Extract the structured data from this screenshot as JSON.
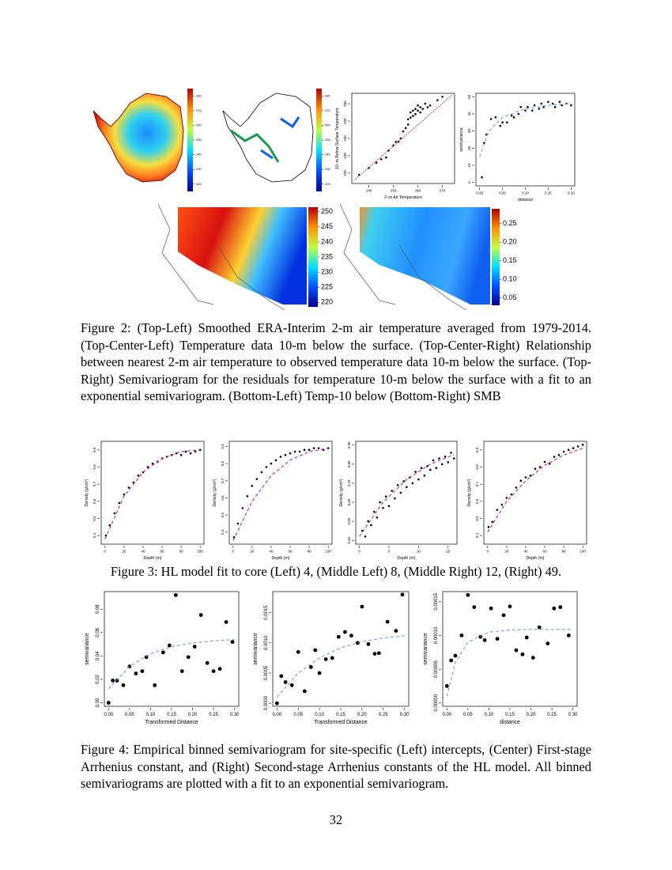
{
  "maps": [
    {
      "colorbar_ticks": [
        220,
        230,
        240,
        250,
        260,
        270,
        280
      ],
      "clim": [
        215,
        285
      ]
    },
    {
      "colorbar_ticks": [
        220,
        230,
        240,
        250,
        260,
        270,
        280
      ],
      "clim": [
        215,
        285
      ]
    },
    {
      "colorbar_ticks": [
        220,
        225,
        230,
        235,
        240,
        245,
        250
      ],
      "clim": [
        218.5,
        251.5
      ]
    },
    {
      "colorbar_ticks": [
        0.05,
        {
          "value": 0.1,
          "label": "0.10"
        },
        0.15,
        {
          "value": 0.2,
          "label": "0.20"
        },
        0.25
      ],
      "clim": [
        0.03,
        0.29
      ]
    }
  ],
  "chart_data": [
    {
      "type": "scatter",
      "xlabel": "2–m Air Temperature",
      "ylabel": "10–m Below Surface Temperature",
      "xlim": [
        233,
        275
      ],
      "ylim": [
        214,
        266
      ],
      "xticks": [
        240,
        250,
        260,
        270
      ],
      "yticks": [
        220,
        230,
        240,
        250,
        260
      ],
      "series": [
        {
          "style": "points",
          "color": "#000000",
          "x": [
            236,
            240,
            243,
            245,
            247,
            248,
            250,
            251,
            252,
            253,
            254,
            255,
            256,
            256,
            257,
            257,
            258,
            258,
            259,
            259,
            260,
            260,
            261,
            261,
            262,
            263,
            264,
            265,
            268,
            270
          ],
          "values": [
            219,
            223,
            226,
            228,
            229,
            233,
            236,
            238,
            238,
            240,
            244,
            246,
            248,
            251,
            252,
            255,
            253,
            256,
            254,
            257,
            256,
            259,
            255,
            258,
            257,
            260,
            258,
            259,
            262,
            264
          ]
        },
        {
          "style": "dotted",
          "color": "#e0302a",
          "x": [
            234,
            274
          ],
          "values": [
            216,
            265
          ]
        }
      ]
    },
    {
      "type": "scatter",
      "xlabel": "distance",
      "ylabel": "semivariance",
      "xlim": [
        -0.008,
        0.208
      ],
      "ylim": [
        -2,
        52
      ],
      "xticks": [
        {
          "value": 0,
          "label": "0.00"
        },
        0.05,
        {
          "value": 0.1,
          "label": "0.10"
        },
        0.15,
        {
          "value": 0.2,
          "label": "0.20"
        }
      ],
      "yticks": [
        0,
        10,
        20,
        30,
        40,
        50
      ],
      "series": [
        {
          "style": "points",
          "color": "#000000",
          "x": [
            0.005,
            0.01,
            0.015,
            0.025,
            0.035,
            0.045,
            0.05,
            0.06,
            0.07,
            0.075,
            0.085,
            0.09,
            0.1,
            0.105,
            0.115,
            0.12,
            0.13,
            0.135,
            0.14,
            0.15,
            0.16,
            0.165,
            0.175,
            0.18,
            0.19,
            0.2
          ],
          "values": [
            3,
            23,
            28,
            37,
            38,
            33,
            35,
            35,
            39,
            38,
            40,
            44,
            42,
            44,
            42,
            45,
            43,
            46,
            44,
            47,
            46,
            44,
            47,
            45,
            46,
            45
          ]
        },
        {
          "style": "dashed",
          "color": "#6f9fe0",
          "x": [
            0,
            0.02,
            0.05,
            0.1,
            0.15,
            0.2
          ],
          "values": [
            15,
            30,
            38,
            43,
            45,
            46
          ]
        }
      ]
    },
    {
      "type": "scatter",
      "xlabel": "Depth (m)",
      "ylabel": "Density (g/cm³)",
      "xlim": [
        -4,
        104
      ],
      "ylim": [
        0.35,
        0.95
      ],
      "xticks": [
        0,
        20,
        40,
        60,
        80,
        100
      ],
      "yticks": [
        0.4,
        0.5,
        0.6,
        0.7,
        0.8,
        0.9
      ],
      "series": [
        {
          "style": "points",
          "color": "#000000",
          "x": [
            1,
            5,
            10,
            15,
            20,
            25,
            30,
            35,
            40,
            45,
            50,
            55,
            60,
            65,
            70,
            75,
            80,
            85,
            90,
            95,
            100
          ],
          "values": [
            0.4,
            0.46,
            0.53,
            0.59,
            0.64,
            0.68,
            0.71,
            0.75,
            0.77,
            0.8,
            0.82,
            0.83,
            0.85,
            0.86,
            0.87,
            0.88,
            0.87,
            0.89,
            0.88,
            0.89,
            0.9
          ]
        },
        {
          "style": "dashed",
          "color": "#c020c0",
          "x": [
            0,
            20,
            40,
            60,
            80,
            100
          ],
          "values": [
            0.38,
            0.63,
            0.77,
            0.85,
            0.89,
            0.9
          ]
        }
      ]
    },
    {
      "type": "scatter",
      "xlabel": "Depth (m)",
      "ylabel": "Density (g/cm³)",
      "xlim": [
        -4,
        104
      ],
      "ylim": [
        0.33,
        0.93
      ],
      "xticks": [
        0,
        20,
        40,
        60,
        80,
        100
      ],
      "yticks": [
        0.4,
        0.5,
        0.6,
        0.7,
        0.8,
        0.9
      ],
      "series": [
        {
          "style": "points",
          "color": "#000000",
          "x": [
            1,
            5,
            10,
            15,
            20,
            25,
            30,
            35,
            40,
            45,
            50,
            55,
            60,
            65,
            70,
            75,
            80,
            85,
            90,
            95,
            100
          ],
          "values": [
            0.37,
            0.45,
            0.54,
            0.61,
            0.67,
            0.71,
            0.75,
            0.78,
            0.8,
            0.82,
            0.84,
            0.85,
            0.86,
            0.87,
            0.87,
            0.88,
            0.88,
            0.89,
            0.89,
            0.88,
            0.89
          ]
        },
        {
          "style": "dashed",
          "color": "#c020c0",
          "x": [
            0,
            20,
            40,
            60,
            80,
            100
          ],
          "values": [
            0.35,
            0.58,
            0.73,
            0.82,
            0.87,
            0.89
          ]
        }
      ]
    },
    {
      "type": "scatter",
      "xlabel": "Depth (m)",
      "ylabel": "Density (g/cm³)",
      "xlim": [
        -0.6,
        16.5
      ],
      "ylim": [
        0.38,
        0.92
      ],
      "xticks": [
        0,
        5,
        10,
        15
      ],
      "yticks": [
        {
          "value": 0.4,
          "label": "0.40"
        },
        {
          "value": 0.5,
          "label": "0.50"
        },
        {
          "value": 0.6,
          "label": "0.60"
        },
        {
          "value": 0.7,
          "label": "0.70"
        },
        {
          "value": 0.8,
          "label": "0.80"
        },
        {
          "value": 0.9,
          "label": "0.90"
        }
      ],
      "series": [
        {
          "style": "points",
          "color": "#000000",
          "x": [
            0.5,
            1,
            1.5,
            2,
            2.5,
            3,
            3.5,
            4,
            4.5,
            5,
            5.5,
            6,
            6.5,
            7,
            7.5,
            8,
            8.5,
            9,
            9.5,
            10,
            10.5,
            11,
            11.5,
            12,
            12.5,
            13,
            13.5,
            14,
            14.5,
            15,
            15.5,
            16
          ],
          "values": [
            0.45,
            0.42,
            0.5,
            0.48,
            0.55,
            0.52,
            0.6,
            0.57,
            0.63,
            0.58,
            0.66,
            0.62,
            0.69,
            0.65,
            0.71,
            0.68,
            0.73,
            0.7,
            0.76,
            0.72,
            0.78,
            0.74,
            0.79,
            0.77,
            0.82,
            0.78,
            0.83,
            0.8,
            0.84,
            0.81,
            0.86,
            0.83
          ]
        },
        {
          "style": "dashed",
          "color": "#c020c0",
          "x": [
            0,
            4,
            8,
            12,
            16
          ],
          "values": [
            0.42,
            0.6,
            0.72,
            0.8,
            0.85
          ]
        }
      ]
    },
    {
      "type": "scatter",
      "xlabel": "Depth (m)",
      "ylabel": "Density (g/cm³)",
      "xlim": [
        -4,
        104
      ],
      "ylim": [
        0.35,
        0.95
      ],
      "xticks": [
        0,
        20,
        40,
        60,
        80,
        100
      ],
      "yticks": [
        0.4,
        0.5,
        0.6,
        0.7,
        0.8,
        0.9
      ],
      "series": [
        {
          "style": "points",
          "color": "#000000",
          "x": [
            1,
            5,
            10,
            15,
            20,
            25,
            30,
            35,
            40,
            45,
            50,
            55,
            60,
            65,
            70,
            75,
            80,
            85,
            90,
            95,
            100
          ],
          "values": [
            0.45,
            0.48,
            0.55,
            0.58,
            0.62,
            0.64,
            0.68,
            0.72,
            0.74,
            0.75,
            0.79,
            0.8,
            0.83,
            0.82,
            0.86,
            0.87,
            0.89,
            0.9,
            0.91,
            0.92,
            0.93
          ]
        },
        {
          "style": "dashed",
          "color": "#c020c0",
          "x": [
            0,
            20,
            40,
            60,
            80,
            100
          ],
          "values": [
            0.42,
            0.6,
            0.72,
            0.81,
            0.87,
            0.91
          ]
        }
      ]
    },
    {
      "type": "scatter",
      "xlabel": "Transformed Distance",
      "ylabel": "semivariance",
      "xlim": [
        -0.01,
        0.31
      ],
      "ylim": [
        -0.003,
        0.095
      ],
      "xticks": [
        {
          "value": 0,
          "label": "0.00"
        },
        0.05,
        {
          "value": 0.1,
          "label": "0.10"
        },
        0.15,
        {
          "value": 0.2,
          "label": "0.20"
        },
        0.25,
        {
          "value": 0.3,
          "label": "0.30"
        }
      ],
      "yticks": [
        {
          "value": 0,
          "label": "0.00"
        },
        0.02,
        0.04,
        0.06,
        0.08
      ],
      "series": [
        {
          "style": "points",
          "color": "#000000",
          "x": [
            0,
            0.01,
            0.02,
            0.035,
            0.05,
            0.065,
            0.08,
            0.09,
            0.11,
            0.13,
            0.145,
            0.16,
            0.175,
            0.19,
            0.205,
            0.22,
            0.235,
            0.25,
            0.265,
            0.28,
            0.295
          ],
          "values": [
            0,
            0.019,
            0.019,
            0.015,
            0.031,
            0.025,
            0.027,
            0.039,
            0.015,
            0.043,
            0.049,
            0.092,
            0.027,
            0.039,
            0.048,
            0.075,
            0.034,
            0.027,
            0.029,
            0.069,
            0.052
          ]
        },
        {
          "style": "dashed",
          "color": "#6f9fe0",
          "x": [
            0,
            0.05,
            0.1,
            0.15,
            0.2,
            0.25,
            0.3
          ],
          "values": [
            0.012,
            0.031,
            0.042,
            0.048,
            0.051,
            0.053,
            0.054
          ]
        }
      ]
    },
    {
      "type": "scatter",
      "xlabel": "Transformed Distance",
      "ylabel": "semivariance",
      "xlim": [
        -0.01,
        0.31
      ],
      "ylim": [
        -5e-05,
        0.00185
      ],
      "xticks": [
        {
          "value": 0,
          "label": "0.00"
        },
        0.05,
        {
          "value": 0.1,
          "label": "0.10"
        },
        0.15,
        {
          "value": 0.2,
          "label": "0.20"
        },
        0.25,
        {
          "value": 0.3,
          "label": "0.30"
        }
      ],
      "yticks": [
        {
          "value": 0,
          "label": "0.0000"
        },
        {
          "value": 0.0005,
          "label": "0.0005"
        },
        {
          "value": 0.001,
          "label": "0.0010"
        },
        {
          "value": 0.0015,
          "label": "0.0015"
        }
      ],
      "series": [
        {
          "style": "points",
          "color": "#000000",
          "x": [
            0,
            0.01,
            0.02,
            0.035,
            0.05,
            0.065,
            0.08,
            0.09,
            0.1,
            0.115,
            0.13,
            0.145,
            0.16,
            0.175,
            0.19,
            0.2,
            0.215,
            0.23,
            0.24,
            0.26,
            0.28,
            0.295
          ],
          "values": [
            0,
            0.00045,
            0.00035,
            0.0003,
            0.00085,
            0.0002,
            0.0006,
            0.00088,
            0.0005,
            0.00073,
            0.00075,
            0.0011,
            0.00118,
            0.00112,
            0.001,
            0.0016,
            0.00098,
            0.00082,
            0.00083,
            0.00135,
            0.0012,
            0.0018
          ]
        },
        {
          "style": "dashed",
          "color": "#6f9fe0",
          "x": [
            0,
            0.05,
            0.1,
            0.15,
            0.2,
            0.25,
            0.3
          ],
          "values": [
            0.0001,
            0.0005,
            0.00075,
            0.00092,
            0.00102,
            0.00108,
            0.00112
          ]
        }
      ]
    },
    {
      "type": "scatter",
      "xlabel": "distance",
      "ylabel": "semivariance",
      "xlim": [
        -0.01,
        0.31
      ],
      "ylim": [
        -5e-06,
        0.000165
      ],
      "xticks": [
        {
          "value": 0,
          "label": "0.00"
        },
        0.05,
        {
          "value": 0.1,
          "label": "0.10"
        },
        0.15,
        {
          "value": 0.2,
          "label": "0.20"
        },
        0.25,
        {
          "value": 0.3,
          "label": "0.30"
        }
      ],
      "yticks": [
        {
          "value": 0,
          "label": "0.00000"
        },
        {
          "value": 5e-05,
          "label": "0.00005"
        },
        {
          "value": 0.0001,
          "label": "0.00010"
        },
        {
          "value": 0.00015,
          "label": "0.00015"
        }
      ],
      "series": [
        {
          "style": "points",
          "color": "#000000",
          "x": [
            0,
            0.01,
            0.02,
            0.035,
            0.05,
            0.065,
            0.08,
            0.09,
            0.105,
            0.12,
            0.135,
            0.15,
            0.165,
            0.18,
            0.19,
            0.205,
            0.22,
            0.24,
            0.255,
            0.27,
            0.29
          ],
          "values": [
            2.5e-05,
            6.3e-05,
            7e-05,
            0.0001,
            0.00016,
            0.000142,
            9.8e-05,
            9.3e-05,
            0.00014,
            9.5e-05,
            0.00013,
            0.000143,
            7.8e-05,
            7.2e-05,
            9.7e-05,
            6.7e-05,
            0.000112,
            8.8e-05,
            0.00014,
            0.000142,
            0.0001
          ]
        },
        {
          "style": "dashed",
          "color": "#6f9fe0",
          "x": [
            0,
            0.02,
            0.05,
            0.1,
            0.15,
            0.2,
            0.3
          ],
          "values": [
            1e-05,
            6e-05,
            9e-05,
            0.000105,
            0.000108,
            0.000109,
            0.000109
          ]
        }
      ]
    }
  ],
  "captions": [
    "Figure 2: (Top-Left) Smoothed ERA-Interim 2-m air temperature averaged from 1979-2014. (Top-Center-Left) Temperature data 10-m below the surface. (Top-Center-Right) Relationship between nearest 2-m air temperature to observed temperature data 10-m below the surface. (Top-Right) Semivariogram for the residuals for temperature 10-m below the surface with a fit to an exponential semivariogram. (Bottom-Left) Temp-10 below (Bottom-Right) SMB",
    "Figure 3: HL model fit to core (Left) 4, (Middle Left) 8, (Middle Right) 12, (Right) 49.",
    "Figure 4: Empirical binned semivariogram for site-specific (Left) intercepts, (Center) First-stage Arrhenius constant, and (Right) Second-stage Arrhenius constants of the HL model. All binned semivariograms are plotted with a fit to an exponential semivariogram."
  ],
  "page_number": "32"
}
